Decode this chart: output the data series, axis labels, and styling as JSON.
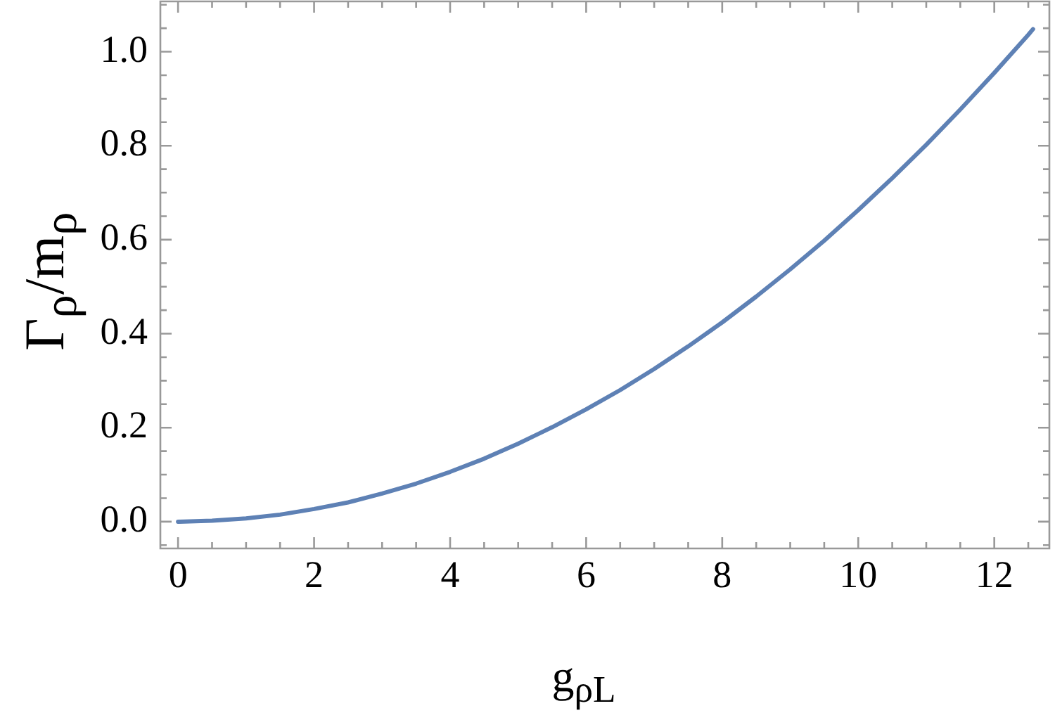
{
  "chart_data": {
    "type": "line",
    "xlabel": "g$_{ρL}$",
    "ylabel": "Γ$_{ρ}$/m$_{ρ}$",
    "x": [
      0,
      0.5,
      1,
      1.5,
      2,
      2.5,
      3,
      3.5,
      4,
      4.5,
      5,
      5.5,
      6,
      6.5,
      7,
      7.5,
      8,
      8.5,
      9,
      9.5,
      10,
      10.5,
      11,
      11.5,
      12,
      12.5,
      12.57
    ],
    "series": [
      {
        "color": "#5e81b5",
        "values": [
          0,
          0.002,
          0.007,
          0.015,
          0.027,
          0.041,
          0.06,
          0.081,
          0.106,
          0.134,
          0.166,
          0.201,
          0.239,
          0.28,
          0.325,
          0.373,
          0.424,
          0.479,
          0.537,
          0.598,
          0.663,
          0.731,
          0.802,
          0.877,
          0.955,
          1.036,
          1.048
        ]
      }
    ],
    "xlim": [
      -0.26,
      12.81
    ],
    "xticks": [
      0,
      {
        "value": 0.5,
        "label": null
      },
      {
        "value": 1,
        "label": null
      },
      {
        "value": 1.5,
        "label": null
      },
      2,
      {
        "value": 2.5,
        "label": null
      },
      {
        "value": 3,
        "label": null
      },
      {
        "value": 3.5,
        "label": null
      },
      4,
      {
        "value": 4.5,
        "label": null
      },
      {
        "value": 5,
        "label": null
      },
      {
        "value": 5.5,
        "label": null
      },
      6,
      {
        "value": 6.5,
        "label": null
      },
      {
        "value": 7,
        "label": null
      },
      {
        "value": 7.5,
        "label": null
      },
      8,
      {
        "value": 8.5,
        "label": null
      },
      {
        "value": 9,
        "label": null
      },
      {
        "value": 9.5,
        "label": null
      },
      10,
      {
        "value": 10.5,
        "label": null
      },
      {
        "value": 11,
        "label": null
      },
      {
        "value": 11.5,
        "label": null
      },
      12,
      {
        "value": 12.5,
        "label": null
      }
    ],
    "ylim": [
      -0.057,
      1.107
    ],
    "yticks": [
      {
        "value": -0.05,
        "label": null
      },
      {
        "value": 0,
        "label": "0.0"
      },
      {
        "value": 0.05,
        "label": null
      },
      {
        "value": 0.1,
        "label": null
      },
      {
        "value": 0.15,
        "label": null
      },
      {
        "value": 0.2,
        "label": "0.2"
      },
      {
        "value": 0.25,
        "label": null
      },
      {
        "value": 0.3,
        "label": null
      },
      {
        "value": 0.35,
        "label": null
      },
      {
        "value": 0.4,
        "label": "0.4"
      },
      {
        "value": 0.45,
        "label": null
      },
      {
        "value": 0.5,
        "label": null
      },
      {
        "value": 0.55,
        "label": null
      },
      {
        "value": 0.6,
        "label": "0.6"
      },
      {
        "value": 0.65,
        "label": null
      },
      {
        "value": 0.7,
        "label": null
      },
      {
        "value": 0.75,
        "label": null
      },
      {
        "value": 0.8,
        "label": "0.8"
      },
      {
        "value": 0.85,
        "label": null
      },
      {
        "value": 0.9,
        "label": null
      },
      {
        "value": 0.95,
        "label": null
      },
      {
        "value": 1,
        "label": "1.0"
      },
      {
        "value": 1.05,
        "label": null
      },
      {
        "value": 1.1,
        "label": null
      }
    ]
  }
}
